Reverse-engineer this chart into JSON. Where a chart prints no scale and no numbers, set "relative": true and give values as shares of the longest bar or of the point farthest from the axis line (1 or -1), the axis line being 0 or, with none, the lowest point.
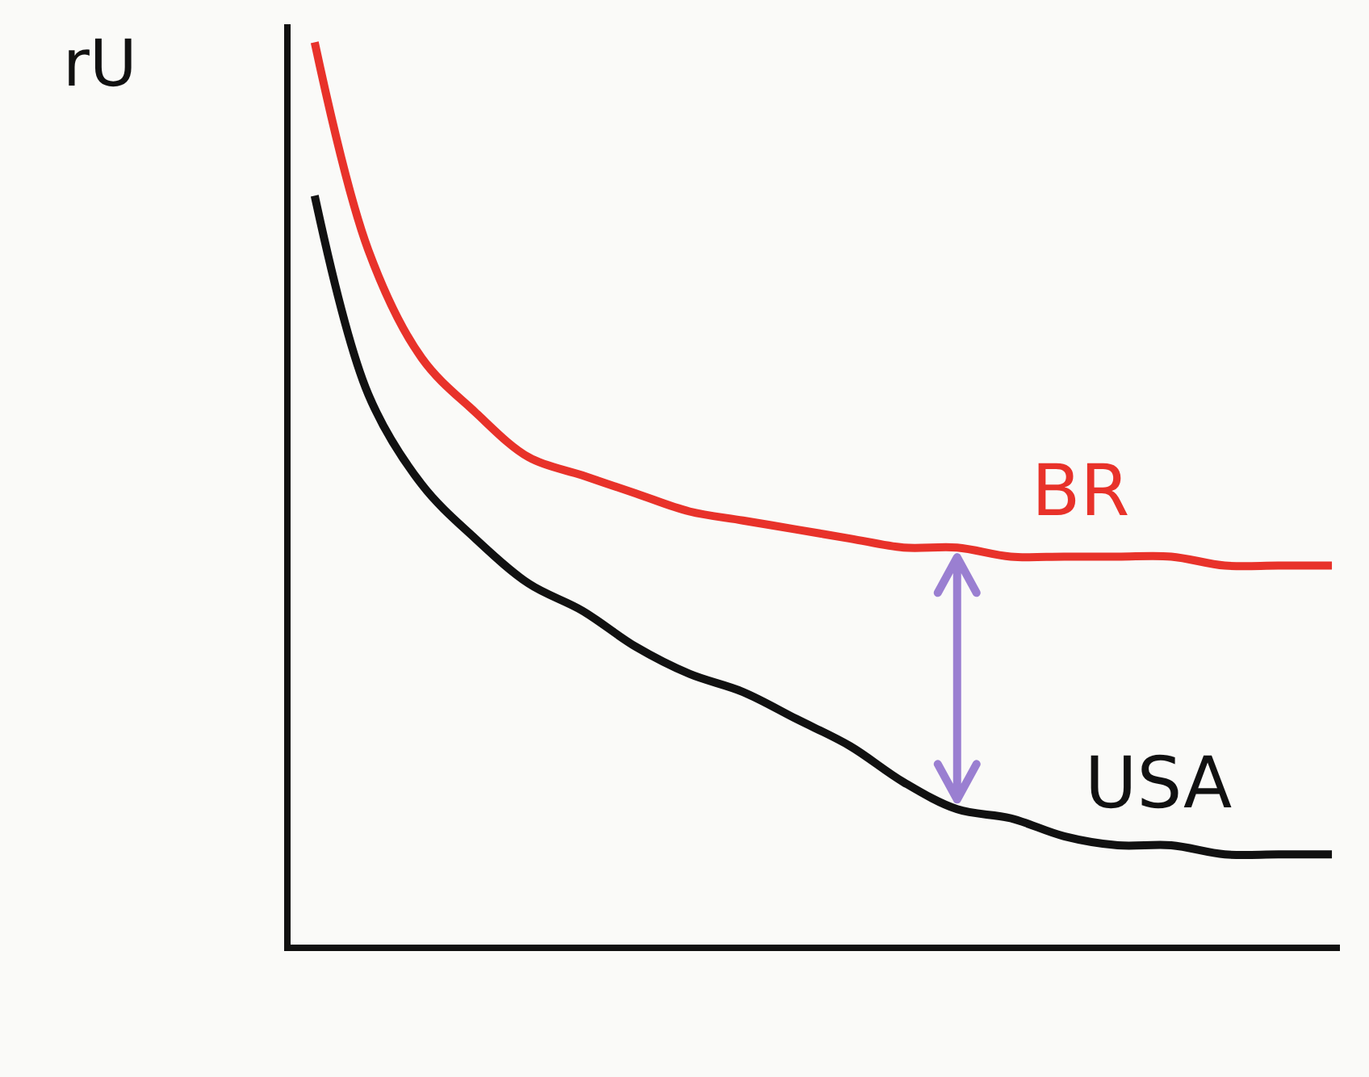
{
  "chart_data": {
    "type": "line",
    "relative": true,
    "ylabel": "rU",
    "marker": "none",
    "line_style": "solid",
    "categories": [
      null,
      null,
      null,
      null,
      null,
      null,
      null,
      null,
      null,
      null,
      null,
      null,
      null,
      null,
      null,
      null,
      null,
      null,
      null,
      null
    ],
    "series": [
      {
        "name": "BR",
        "color": "#e8322a",
        "values": [
          1,
          0.77,
          0.65,
          0.59,
          0.54,
          0.52,
          0.5,
          0.48,
          0.47,
          0.46,
          0.45,
          0.44,
          0.44,
          0.43,
          0.43,
          0.43,
          0.43,
          0.42,
          0.42,
          0.42
        ]
      },
      {
        "name": "USA",
        "color": "#111111",
        "values": [
          0.83,
          0.61,
          0.51,
          0.45,
          0.4,
          0.37,
          0.33,
          0.3,
          0.28,
          0.25,
          0.22,
          0.18,
          0.15,
          0.14,
          0.12,
          0.11,
          0.11,
          0.1,
          0.1,
          0.1
        ]
      }
    ]
  }
}
